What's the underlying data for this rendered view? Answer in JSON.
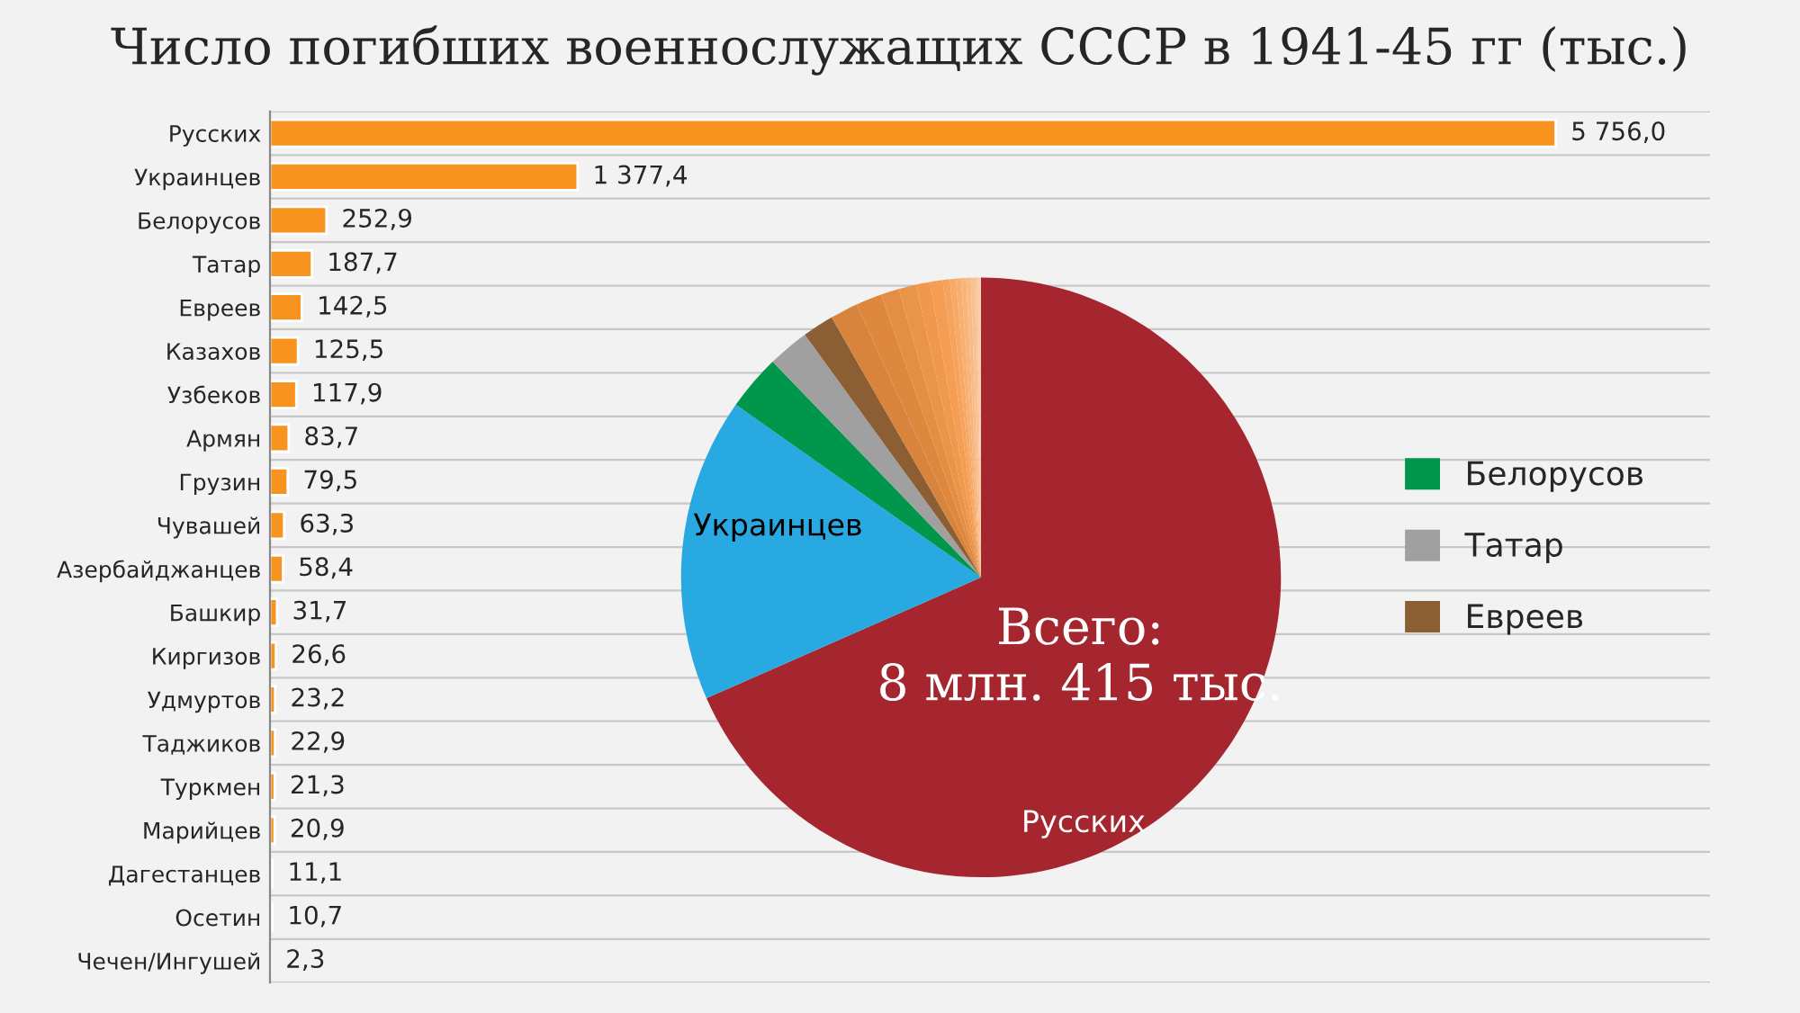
{
  "chart_data": [
    {
      "type": "bar",
      "orientation": "horizontal",
      "title": "Число погибших военнослужащих СССР в 1941-45 гг (тыс.)",
      "categories": [
        "Русских",
        "Украинцев",
        "Белорусов",
        "Татар",
        "Евреев",
        "Казахов",
        "Узбеков",
        "Армян",
        "Грузин",
        "Чувашей",
        "Азербайджанцев",
        "Башкир",
        "Киргизов",
        "Удмуртов",
        "Таджиков",
        "Туркмен",
        "Марийцев",
        "Дагестанцев",
        "Осетин",
        "Чечен/Ингушей"
      ],
      "values": [
        5756.0,
        1377.4,
        252.9,
        187.7,
        142.5,
        125.5,
        117.9,
        83.7,
        79.5,
        63.3,
        58.4,
        31.7,
        26.6,
        23.2,
        22.9,
        21.3,
        20.9,
        11.1,
        10.7,
        2.3
      ],
      "value_labels": [
        "5 756,0",
        "1 377,4",
        "252,9",
        "187,7",
        "142,5",
        "125,5",
        "117,9",
        "83,7",
        "79,5",
        "63,3",
        "58,4",
        "31,7",
        "26,6",
        "23,2",
        "22,9",
        "21,3",
        "20,9",
        "11,1",
        "10,7",
        "2,3"
      ],
      "color": "#f7931e",
      "tick_labels": "y"
    },
    {
      "type": "pie",
      "categories": [
        "Русских",
        "Украинцев",
        "Белорусов",
        "Татар",
        "Евреев",
        null,
        null,
        null,
        null,
        null,
        null,
        null,
        null,
        null,
        null,
        null,
        null,
        null,
        null,
        null
      ],
      "values": [
        68.4,
        16.37,
        3.01,
        2.23,
        1.69,
        1.49,
        1.4,
        0.99,
        0.94,
        0.75,
        0.69,
        0.38,
        0.32,
        0.28,
        0.27,
        0.25,
        0.25,
        0.13,
        0.13,
        0.03
      ],
      "colors": [
        "#a5262e",
        "#29a9e1",
        "#00964b",
        "#a0a0a0",
        "#8b5e34",
        "#d9843c",
        "#de883e",
        "#e38e43",
        "#e99447",
        "#f0994c",
        "#f59d52",
        "#f7a35c",
        "#f7a966",
        "#f8af70",
        "#f8b57a",
        "#f9bb85",
        "#f9c18f",
        "#fac79a",
        "#fbcda5",
        "#fcd3b0"
      ],
      "legend": "right",
      "annotations": [
        "Всего:\n8 млн. 415 тыс."
      ]
    }
  ]
}
